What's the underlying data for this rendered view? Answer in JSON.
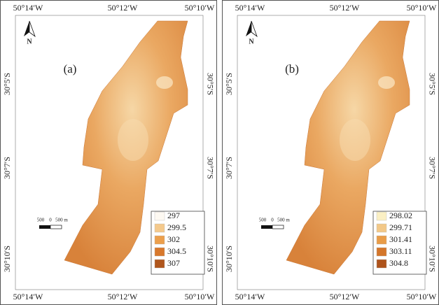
{
  "panels": [
    {
      "label": "(a)",
      "north": "N",
      "top_labels": [
        "50°14′W",
        "50°12′W",
        "50°10′W"
      ],
      "bottom_labels": [
        "50°14′W",
        "50°12′W",
        "50°10′W"
      ],
      "left_labels": [
        "30°5′S",
        "30°7′S",
        "30°10′S"
      ],
      "right_labels": [
        "30°5′S",
        "30°7′S",
        "30°10′S"
      ],
      "scale_bar": [
        "500",
        "0",
        "500 m"
      ],
      "legend": [
        "297",
        "299.5",
        "302",
        "304.5",
        "307"
      ]
    },
    {
      "label": "(b)",
      "north": "N",
      "top_labels": [
        "50°14′W",
        "50°12′W",
        "50°10′W"
      ],
      "bottom_labels": [
        "50°14′W",
        "50°12′W",
        "50°10′W"
      ],
      "left_labels": [
        "30°5′S",
        "30°7′S",
        "30°10′S"
      ],
      "right_labels": [
        "30°5′S",
        "30°7′S",
        "30°10′S"
      ],
      "scale_bar": [
        "500",
        "0",
        "500 m"
      ],
      "legend": [
        "298.02",
        "299.71",
        "301.41",
        "303.11",
        "304.8"
      ]
    }
  ]
}
